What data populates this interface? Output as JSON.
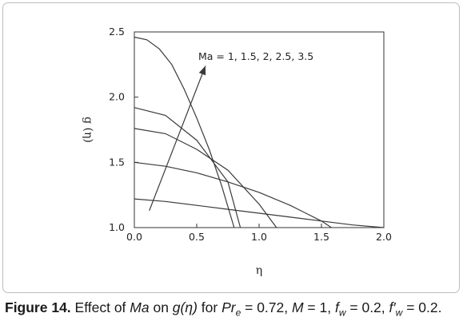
{
  "chart_data": {
    "type": "line",
    "title": "",
    "xlabel": "η",
    "ylabel": "g (η)",
    "xlim": [
      0.0,
      2.0
    ],
    "ylim": [
      1.0,
      2.5
    ],
    "xticks": [
      "0.0",
      "0.5",
      "1.0",
      "1.5",
      "2.0"
    ],
    "yticks": [
      "1.0",
      "1.5",
      "2.0",
      "2.5"
    ],
    "xtick_values": [
      0.0,
      0.5,
      1.0,
      1.5,
      2.0
    ],
    "ytick_values": [
      1.0,
      1.5,
      2.0,
      2.5
    ],
    "grid": false,
    "annotation": "Ma = 1, 1.5, 2, 2.5, 3.5",
    "annotation_arrow": {
      "from": [
        0.12,
        1.13
      ],
      "to": [
        0.57,
        2.24
      ]
    },
    "series": [
      {
        "x": [
          0,
          0.25,
          0.5,
          0.75,
          1.0,
          1.25,
          1.5,
          1.75,
          2.0
        ],
        "y": [
          1.22,
          1.2,
          1.17,
          1.14,
          1.11,
          1.08,
          1.05,
          1.02,
          1.0
        ]
      },
      {
        "x": [
          0,
          0.25,
          0.5,
          0.75,
          1.0,
          1.25,
          1.5,
          1.58
        ],
        "y": [
          1.5,
          1.47,
          1.42,
          1.35,
          1.27,
          1.17,
          1.05,
          1.0
        ]
      },
      {
        "x": [
          0,
          0.25,
          0.5,
          0.75,
          1.0,
          1.14
        ],
        "y": [
          1.76,
          1.72,
          1.6,
          1.44,
          1.18,
          1.0
        ]
      },
      {
        "x": [
          0,
          0.25,
          0.5,
          0.75,
          0.85
        ],
        "y": [
          1.92,
          1.86,
          1.67,
          1.35,
          1.0
        ]
      },
      {
        "x": [
          0,
          0.1,
          0.2,
          0.3,
          0.4,
          0.5,
          0.6,
          0.7,
          0.8
        ],
        "y": [
          2.46,
          2.44,
          2.37,
          2.25,
          2.06,
          1.84,
          1.6,
          1.32,
          1.0
        ]
      }
    ]
  },
  "caption": {
    "figure_label": "Figure 14.",
    "text_1": " Effect of ",
    "ma": "Ma",
    "text_2": " on ",
    "g_eta": "g(η)",
    "text_3": " for ",
    "pr": "Pr",
    "pr_sub": "e",
    "text_4": " = 0.72, ",
    "m": "M",
    "text_5": " = 1, ",
    "fw": "f",
    "fw_sub": "w",
    "text_6": " = 0.2, ",
    "fwp": "f′",
    "fwp_sub": "w",
    "text_7": " = 0.2."
  }
}
